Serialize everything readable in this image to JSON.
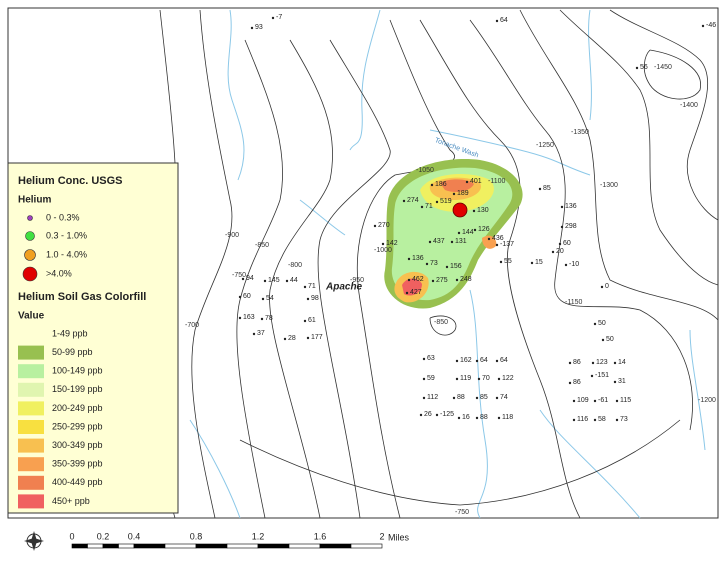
{
  "legend": {
    "title": "Helium Conc. USGS",
    "helium_heading": "Helium",
    "helium_classes": [
      "0 - 0.3%",
      "0.3 - 1.0%",
      "1.0 - 4.0%",
      ">4.0%"
    ],
    "colorfill_heading": "Helium Soil Gas Colorfill",
    "value_heading": "Value",
    "colorfill_classes": [
      "1-49 ppb",
      "50-99 ppb",
      "100-149 ppb",
      "150-199 ppb",
      "200-249 ppb",
      "250-299 ppb",
      "300-349 ppb",
      "350-399 ppb",
      "400-449 ppb",
      "450+ ppb"
    ]
  },
  "map_labels": {
    "place": "Apache",
    "wash": "Tonache Wash"
  },
  "contour_labels": [
    "-1450",
    "-1050",
    "-1100",
    "-1250",
    "-1350",
    "-1300",
    "-1400",
    "-1000",
    "-950",
    "-900",
    "-850",
    "-800",
    "-750",
    "-700",
    "-850",
    "-750",
    "-1200",
    "-1150"
  ],
  "sample_labels": [
    "93",
    "-7",
    "64",
    "-46",
    "56",
    "401",
    "186",
    "189",
    "274",
    "71",
    "519",
    "144",
    "130",
    "270",
    "142",
    "437",
    "131",
    "126",
    "436",
    "136",
    "73",
    "156",
    "248",
    "462",
    "275",
    "427",
    "-137",
    "85",
    "136",
    "298",
    "60",
    "20",
    "55",
    "15",
    "-10",
    "0",
    "94",
    "145",
    "44",
    "71",
    "60",
    "54",
    "98",
    "163",
    "78",
    "61",
    "37",
    "28",
    "177",
    "63",
    "162",
    "64",
    "64",
    "59",
    "119",
    "70",
    "122",
    "112",
    "88",
    "85",
    "74",
    "26",
    "-125",
    "16",
    "88",
    "118",
    "86",
    "123",
    "14",
    "-151",
    "86",
    "31",
    "109",
    "-61",
    "115",
    "116",
    "58",
    "73",
    "50",
    "50"
  ],
  "scale_bar": {
    "ticks": [
      "0",
      "0.2",
      "0.4",
      "0.8",
      "1.2",
      "1.6",
      "2"
    ],
    "unit": "Miles"
  }
}
